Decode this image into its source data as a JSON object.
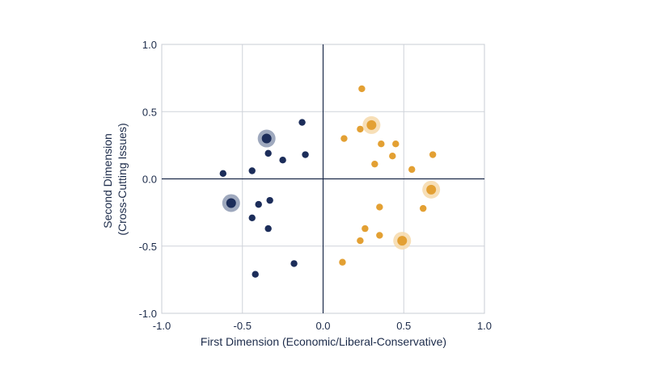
{
  "chart_data": {
    "type": "scatter",
    "title": "",
    "xlabel": "First Dimension (Economic/Liberal-Conservative)",
    "ylabel_lines": [
      "Second Dimension",
      "(Cross-Cutting Issues)"
    ],
    "xlim": [
      -1.0,
      1.0
    ],
    "ylim": [
      -1.0,
      1.0
    ],
    "x_ticks": [
      -1.0,
      -0.5,
      0.0,
      0.5,
      1.0
    ],
    "y_ticks": [
      -1.0,
      -0.5,
      0.0,
      0.5,
      1.0
    ],
    "x_tick_labels": [
      "-1.0",
      "-0.5",
      "0.0",
      "0.5",
      "1.0"
    ],
    "y_tick_labels": [
      "-1.0",
      "-0.5",
      "0.0",
      "0.5",
      "1.0"
    ],
    "grid": true,
    "legend": "none",
    "colors": {
      "grid": "#cfd3da",
      "axis_zero": "#1c2b4a",
      "frame": "#c9cdd4",
      "text": "#1c2b4a"
    },
    "series": [
      {
        "color": "#1c2d5a",
        "halo_color": "#8e9ab3",
        "points": [
          {
            "x": -0.13,
            "y": 0.42
          },
          {
            "x": -0.34,
            "y": 0.19
          },
          {
            "x": -0.25,
            "y": 0.14
          },
          {
            "x": -0.11,
            "y": 0.18
          },
          {
            "x": -0.44,
            "y": 0.06
          },
          {
            "x": -0.62,
            "y": 0.04
          },
          {
            "x": -0.4,
            "y": -0.19
          },
          {
            "x": -0.33,
            "y": -0.16
          },
          {
            "x": -0.44,
            "y": -0.29
          },
          {
            "x": -0.34,
            "y": -0.37
          },
          {
            "x": -0.18,
            "y": -0.63
          },
          {
            "x": -0.42,
            "y": -0.71
          }
        ],
        "highlighted": [
          {
            "x": -0.35,
            "y": 0.3
          },
          {
            "x": -0.57,
            "y": -0.18
          }
        ]
      },
      {
        "color": "#e3a033",
        "halo_color": "#f6d9aa",
        "points": [
          {
            "x": 0.24,
            "y": 0.67
          },
          {
            "x": 0.23,
            "y": 0.37
          },
          {
            "x": 0.13,
            "y": 0.3
          },
          {
            "x": 0.36,
            "y": 0.26
          },
          {
            "x": 0.45,
            "y": 0.26
          },
          {
            "x": 0.43,
            "y": 0.17
          },
          {
            "x": 0.68,
            "y": 0.18
          },
          {
            "x": 0.32,
            "y": 0.11
          },
          {
            "x": 0.55,
            "y": 0.07
          },
          {
            "x": 0.62,
            "y": -0.22
          },
          {
            "x": 0.35,
            "y": -0.21
          },
          {
            "x": 0.26,
            "y": -0.37
          },
          {
            "x": 0.35,
            "y": -0.42
          },
          {
            "x": 0.23,
            "y": -0.46
          },
          {
            "x": 0.12,
            "y": -0.62
          }
        ],
        "highlighted": [
          {
            "x": 0.3,
            "y": 0.4
          },
          {
            "x": 0.67,
            "y": -0.08
          },
          {
            "x": 0.49,
            "y": -0.46
          }
        ]
      }
    ]
  }
}
